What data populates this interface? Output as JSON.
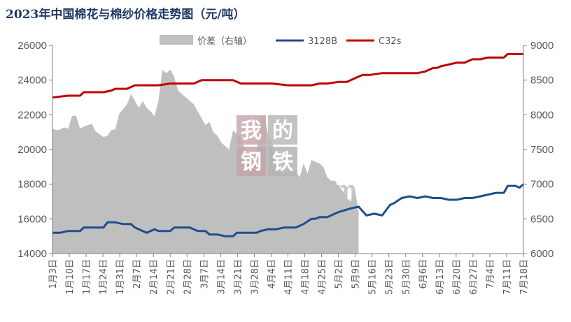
{
  "title": "2023年中国棉花与棉纱价格走势图（元/吨）",
  "watermark": {
    "chars": [
      "我",
      "的",
      "钢",
      "铁"
    ],
    "brand": "Mysteel.com",
    "colors": [
      "#c9a9ad",
      "#b9b9b9",
      "#c3a3a8",
      "#b4b4b4"
    ]
  },
  "chart_data": {
    "type": "line",
    "title": "2023年中国棉花与棉纱价格走势图（元/吨）",
    "left_axis": {
      "min": 14000,
      "max": 26000,
      "step": 2000,
      "ticks": [
        "14000",
        "16000",
        "18000",
        "20000",
        "22000",
        "24000",
        "26000"
      ]
    },
    "right_axis": {
      "min": 6000,
      "max": 9000,
      "step": 500,
      "ticks": [
        "6000",
        "6500",
        "7000",
        "7500",
        "8000",
        "8500",
        "9000"
      ]
    },
    "x_labels": [
      "1月3日",
      "1月10日",
      "1月17日",
      "1月24日",
      "1月31日",
      "2月7日",
      "2月14日",
      "2月21日",
      "2月28日",
      "3月7日",
      "3月14日",
      "3月21日",
      "3月28日",
      "4月4日",
      "4月11日",
      "4月18日",
      "4月25日",
      "5月2日",
      "5月9日",
      "5月16日",
      "5月23日",
      "5月30日",
      "6月6日",
      "6月13日",
      "6月20日",
      "6月27日",
      "7月4日",
      "7月11日",
      "7月18日"
    ],
    "legend_position": "top",
    "grid": false,
    "series": [
      {
        "name": "价差（右轴）",
        "kind": "area",
        "axis": "right",
        "color": "#bfbfbf",
        "points": [
          [
            0,
            7800
          ],
          [
            1,
            7780
          ],
          [
            2,
            7790
          ],
          [
            3,
            7820
          ],
          [
            4,
            7800
          ],
          [
            5,
            7980
          ],
          [
            6,
            7990
          ],
          [
            7,
            7800
          ],
          [
            8,
            7830
          ],
          [
            9,
            7850
          ],
          [
            10,
            7870
          ],
          [
            11,
            7760
          ],
          [
            12,
            7720
          ],
          [
            13,
            7680
          ],
          [
            14,
            7700
          ],
          [
            15,
            7780
          ],
          [
            16,
            7790
          ],
          [
            17,
            8010
          ],
          [
            18,
            8080
          ],
          [
            19,
            8150
          ],
          [
            20,
            8300
          ],
          [
            21,
            8200
          ],
          [
            22,
            8100
          ],
          [
            23,
            8200
          ],
          [
            24,
            8100
          ],
          [
            25,
            8050
          ],
          [
            26,
            7980
          ],
          [
            27,
            8200
          ],
          [
            28,
            8650
          ],
          [
            29,
            8600
          ],
          [
            30,
            8650
          ],
          [
            31,
            8550
          ],
          [
            32,
            8350
          ],
          [
            33,
            8300
          ],
          [
            34,
            8250
          ],
          [
            35,
            8200
          ],
          [
            36,
            8150
          ],
          [
            37,
            8050
          ],
          [
            38,
            7950
          ],
          [
            39,
            7850
          ],
          [
            40,
            7900
          ],
          [
            41,
            7750
          ],
          [
            42,
            7700
          ],
          [
            43,
            7600
          ],
          [
            44,
            7550
          ],
          [
            45,
            7500
          ],
          [
            46,
            7780
          ],
          [
            47,
            7720
          ],
          [
            48,
            7680
          ],
          [
            49,
            7500
          ],
          [
            50,
            7400
          ],
          [
            51,
            7350
          ],
          [
            52,
            7450
          ],
          [
            53,
            7950
          ],
          [
            54,
            7990
          ],
          [
            55,
            7700
          ],
          [
            56,
            7600
          ],
          [
            57,
            7300
          ],
          [
            58,
            7200
          ],
          [
            59,
            7150
          ],
          [
            60,
            7200
          ],
          [
            61,
            7150
          ],
          [
            62,
            7180
          ],
          [
            63,
            7100
          ],
          [
            64,
            7300
          ],
          [
            65,
            7150
          ],
          [
            66,
            7350
          ],
          [
            67,
            7320
          ],
          [
            68,
            7300
          ],
          [
            69,
            7250
          ],
          [
            70,
            7100
          ],
          [
            71,
            7050
          ],
          [
            72,
            7050
          ],
          [
            73,
            6950
          ],
          [
            74,
            6900
          ],
          [
            75,
            6800
          ],
          [
            76,
            6750
          ],
          [
            77,
            6950
          ],
          [
            78,
            6600
          ]
        ]
      },
      {
        "name": "3128B",
        "kind": "line",
        "axis": "left",
        "color": "#1f4e8c",
        "points": [
          [
            0,
            15200
          ],
          [
            2,
            15200
          ],
          [
            4,
            15300
          ],
          [
            7,
            15300
          ],
          [
            8,
            15500
          ],
          [
            13,
            15500
          ],
          [
            14,
            15800
          ],
          [
            16,
            15800
          ],
          [
            18,
            15700
          ],
          [
            20,
            15700
          ],
          [
            21,
            15500
          ],
          [
            23,
            15300
          ],
          [
            24,
            15200
          ],
          [
            26,
            15400
          ],
          [
            27,
            15300
          ],
          [
            30,
            15300
          ],
          [
            31,
            15500
          ],
          [
            35,
            15500
          ],
          [
            37,
            15300
          ],
          [
            39,
            15300
          ],
          [
            40,
            15100
          ],
          [
            42,
            15100
          ],
          [
            44,
            15000
          ],
          [
            46,
            15000
          ],
          [
            47,
            15200
          ],
          [
            50,
            15200
          ],
          [
            52,
            15200
          ],
          [
            53,
            15300
          ],
          [
            55,
            15400
          ],
          [
            57,
            15400
          ],
          [
            59,
            15500
          ],
          [
            62,
            15500
          ],
          [
            64,
            15700
          ],
          [
            66,
            16000
          ],
          [
            67,
            16000
          ],
          [
            68,
            16100
          ],
          [
            70,
            16100
          ],
          [
            71,
            16200
          ],
          [
            73,
            16400
          ],
          [
            76,
            16600
          ],
          [
            78,
            16700
          ],
          [
            80,
            16200
          ],
          [
            82,
            16300
          ],
          [
            84,
            16200
          ],
          [
            86,
            16800
          ],
          [
            87,
            16900
          ],
          [
            89,
            17200
          ],
          [
            91,
            17300
          ],
          [
            93,
            17200
          ],
          [
            95,
            17300
          ],
          [
            97,
            17200
          ],
          [
            99,
            17200
          ],
          [
            101,
            17100
          ],
          [
            103,
            17100
          ],
          [
            105,
            17200
          ],
          [
            107,
            17200
          ],
          [
            109,
            17300
          ],
          [
            111,
            17400
          ],
          [
            113,
            17500
          ],
          [
            115,
            17500
          ],
          [
            116,
            17900
          ],
          [
            118,
            17900
          ],
          [
            119,
            17800
          ],
          [
            120,
            18000
          ]
        ]
      },
      {
        "name": "C32s",
        "kind": "line",
        "axis": "left",
        "color": "#c00000",
        "points": [
          [
            0,
            23000
          ],
          [
            4,
            23100
          ],
          [
            7,
            23100
          ],
          [
            8,
            23300
          ],
          [
            13,
            23300
          ],
          [
            15,
            23400
          ],
          [
            16,
            23500
          ],
          [
            18,
            23500
          ],
          [
            19,
            23500
          ],
          [
            21,
            23700
          ],
          [
            24,
            23700
          ],
          [
            27,
            23700
          ],
          [
            30,
            23800
          ],
          [
            33,
            23800
          ],
          [
            36,
            23800
          ],
          [
            38,
            24000
          ],
          [
            42,
            24000
          ],
          [
            44,
            24000
          ],
          [
            46,
            24000
          ],
          [
            48,
            23800
          ],
          [
            52,
            23800
          ],
          [
            56,
            23800
          ],
          [
            60,
            23700
          ],
          [
            63,
            23700
          ],
          [
            66,
            23700
          ],
          [
            68,
            23800
          ],
          [
            70,
            23800
          ],
          [
            73,
            23900
          ],
          [
            75,
            23900
          ],
          [
            77,
            24100
          ],
          [
            79,
            24300
          ],
          [
            80,
            24300
          ],
          [
            81,
            24300
          ],
          [
            84,
            24400
          ],
          [
            88,
            24400
          ],
          [
            90,
            24400
          ],
          [
            93,
            24400
          ],
          [
            95,
            24500
          ],
          [
            97,
            24700
          ],
          [
            98,
            24700
          ],
          [
            99,
            24800
          ],
          [
            101,
            24900
          ],
          [
            103,
            25000
          ],
          [
            105,
            25000
          ],
          [
            107,
            25200
          ],
          [
            109,
            25200
          ],
          [
            111,
            25300
          ],
          [
            113,
            25300
          ],
          [
            115,
            25300
          ],
          [
            116,
            25500
          ],
          [
            118,
            25500
          ],
          [
            120,
            25500
          ]
        ]
      }
    ]
  }
}
